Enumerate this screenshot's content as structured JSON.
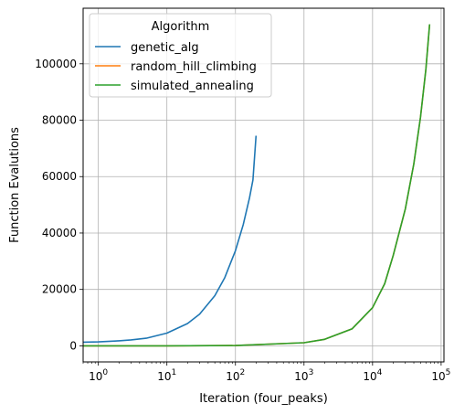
{
  "chart_data": {
    "type": "line",
    "title": "",
    "xlabel": "Iteration (four_peaks)",
    "ylabel": "Function Evalutions",
    "xscale": "log",
    "xlim": [
      0.6,
      110000
    ],
    "ylim": [
      -5700,
      119700
    ],
    "x_ticks": [
      1,
      10,
      100,
      1000,
      10000,
      100000
    ],
    "x_tick_labels": [
      {
        "base": "10",
        "exp": "0"
      },
      {
        "base": "10",
        "exp": "1"
      },
      {
        "base": "10",
        "exp": "2"
      },
      {
        "base": "10",
        "exp": "3"
      },
      {
        "base": "10",
        "exp": "4"
      },
      {
        "base": "10",
        "exp": "5"
      }
    ],
    "y_ticks": [
      0,
      20000,
      40000,
      60000,
      80000,
      100000
    ],
    "y_tick_labels": [
      "0",
      "20000",
      "40000",
      "60000",
      "80000",
      "100000"
    ],
    "grid": true,
    "legend": {
      "title": "Algorithm",
      "placement": "top-left"
    },
    "series": [
      {
        "name": "genetic_alg",
        "color": "#1f77b4",
        "x": [
          0.6,
          1,
          2,
          3,
          5,
          10,
          20,
          30,
          50,
          70,
          100,
          130,
          160,
          180,
          200
        ],
        "y": [
          1300,
          1400,
          1800,
          2100,
          2700,
          4500,
          7900,
          11200,
          17800,
          24200,
          33700,
          43000,
          52400,
          58800,
          74500
        ]
      },
      {
        "name": "random_hill_climbing",
        "color": "#ff7f0e",
        "x": [
          0.6,
          1,
          10,
          100,
          1000,
          2000,
          5000,
          10000,
          15000,
          20000,
          30000,
          40000,
          50000,
          60000,
          68000
        ],
        "y": [
          0,
          0,
          11,
          110,
          1100,
          2300,
          6000,
          13500,
          22000,
          32000,
          48500,
          64500,
          81000,
          98000,
          114000
        ]
      },
      {
        "name": "simulated_annealing",
        "color": "#2ca02c",
        "x": [
          0.6,
          1,
          10,
          100,
          1000,
          2000,
          5000,
          10000,
          15000,
          20000,
          30000,
          40000,
          50000,
          60000,
          68000
        ],
        "y": [
          0,
          0,
          11,
          110,
          1100,
          2300,
          6000,
          13500,
          22000,
          32000,
          48500,
          64500,
          81000,
          98000,
          114000
        ]
      }
    ]
  }
}
